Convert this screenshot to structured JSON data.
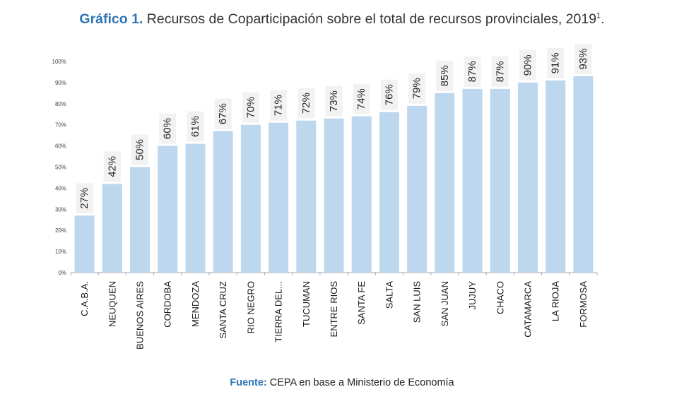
{
  "title": {
    "prefix": "Gráfico 1.",
    "text": "Recursos de Coparticipación sobre el total de recursos provinciales, 2019",
    "sup": "1",
    "suffix": "."
  },
  "source": {
    "label": "Fuente:",
    "text": "CEPA en base a Ministerio de Economía"
  },
  "colors": {
    "bar": "#bdd7ee",
    "label_bg": "#f2f2f2",
    "accent": "#2e75b6"
  },
  "chart_data": {
    "type": "bar",
    "categories": [
      "C.A.B.A.",
      "NEUQUEN",
      "BUENOS AIRES",
      "CORDOBA",
      "MENDOZA",
      "SANTA CRUZ",
      "RIO NEGRO",
      "TIERRA DEL...",
      "TUCUMAN",
      "ENTRE RIOS",
      "SANTA FE",
      "SALTA",
      "SAN LUIS",
      "SAN JUAN",
      "JUJUY",
      "CHACO",
      "CATAMARCA",
      "LA RIOJA",
      "FORMOSA"
    ],
    "values": [
      27,
      42,
      50,
      60,
      61,
      67,
      70,
      71,
      72,
      73,
      74,
      76,
      79,
      85,
      87,
      87,
      90,
      91,
      93
    ],
    "data_labels": [
      "27%",
      "42%",
      "50%",
      "60%",
      "61%",
      "67%",
      "70%",
      "71%",
      "72%",
      "73%",
      "74%",
      "76%",
      "79%",
      "85%",
      "87%",
      "87%",
      "90%",
      "91%",
      "93%"
    ],
    "y_ticks": [
      "0%",
      "10%",
      "20%",
      "30%",
      "40%",
      "50%",
      "60%",
      "70%",
      "80%",
      "90%",
      "100%"
    ],
    "ylim": [
      0,
      100
    ],
    "xlabel": "",
    "ylabel": "",
    "grid": false,
    "legend": "none"
  }
}
